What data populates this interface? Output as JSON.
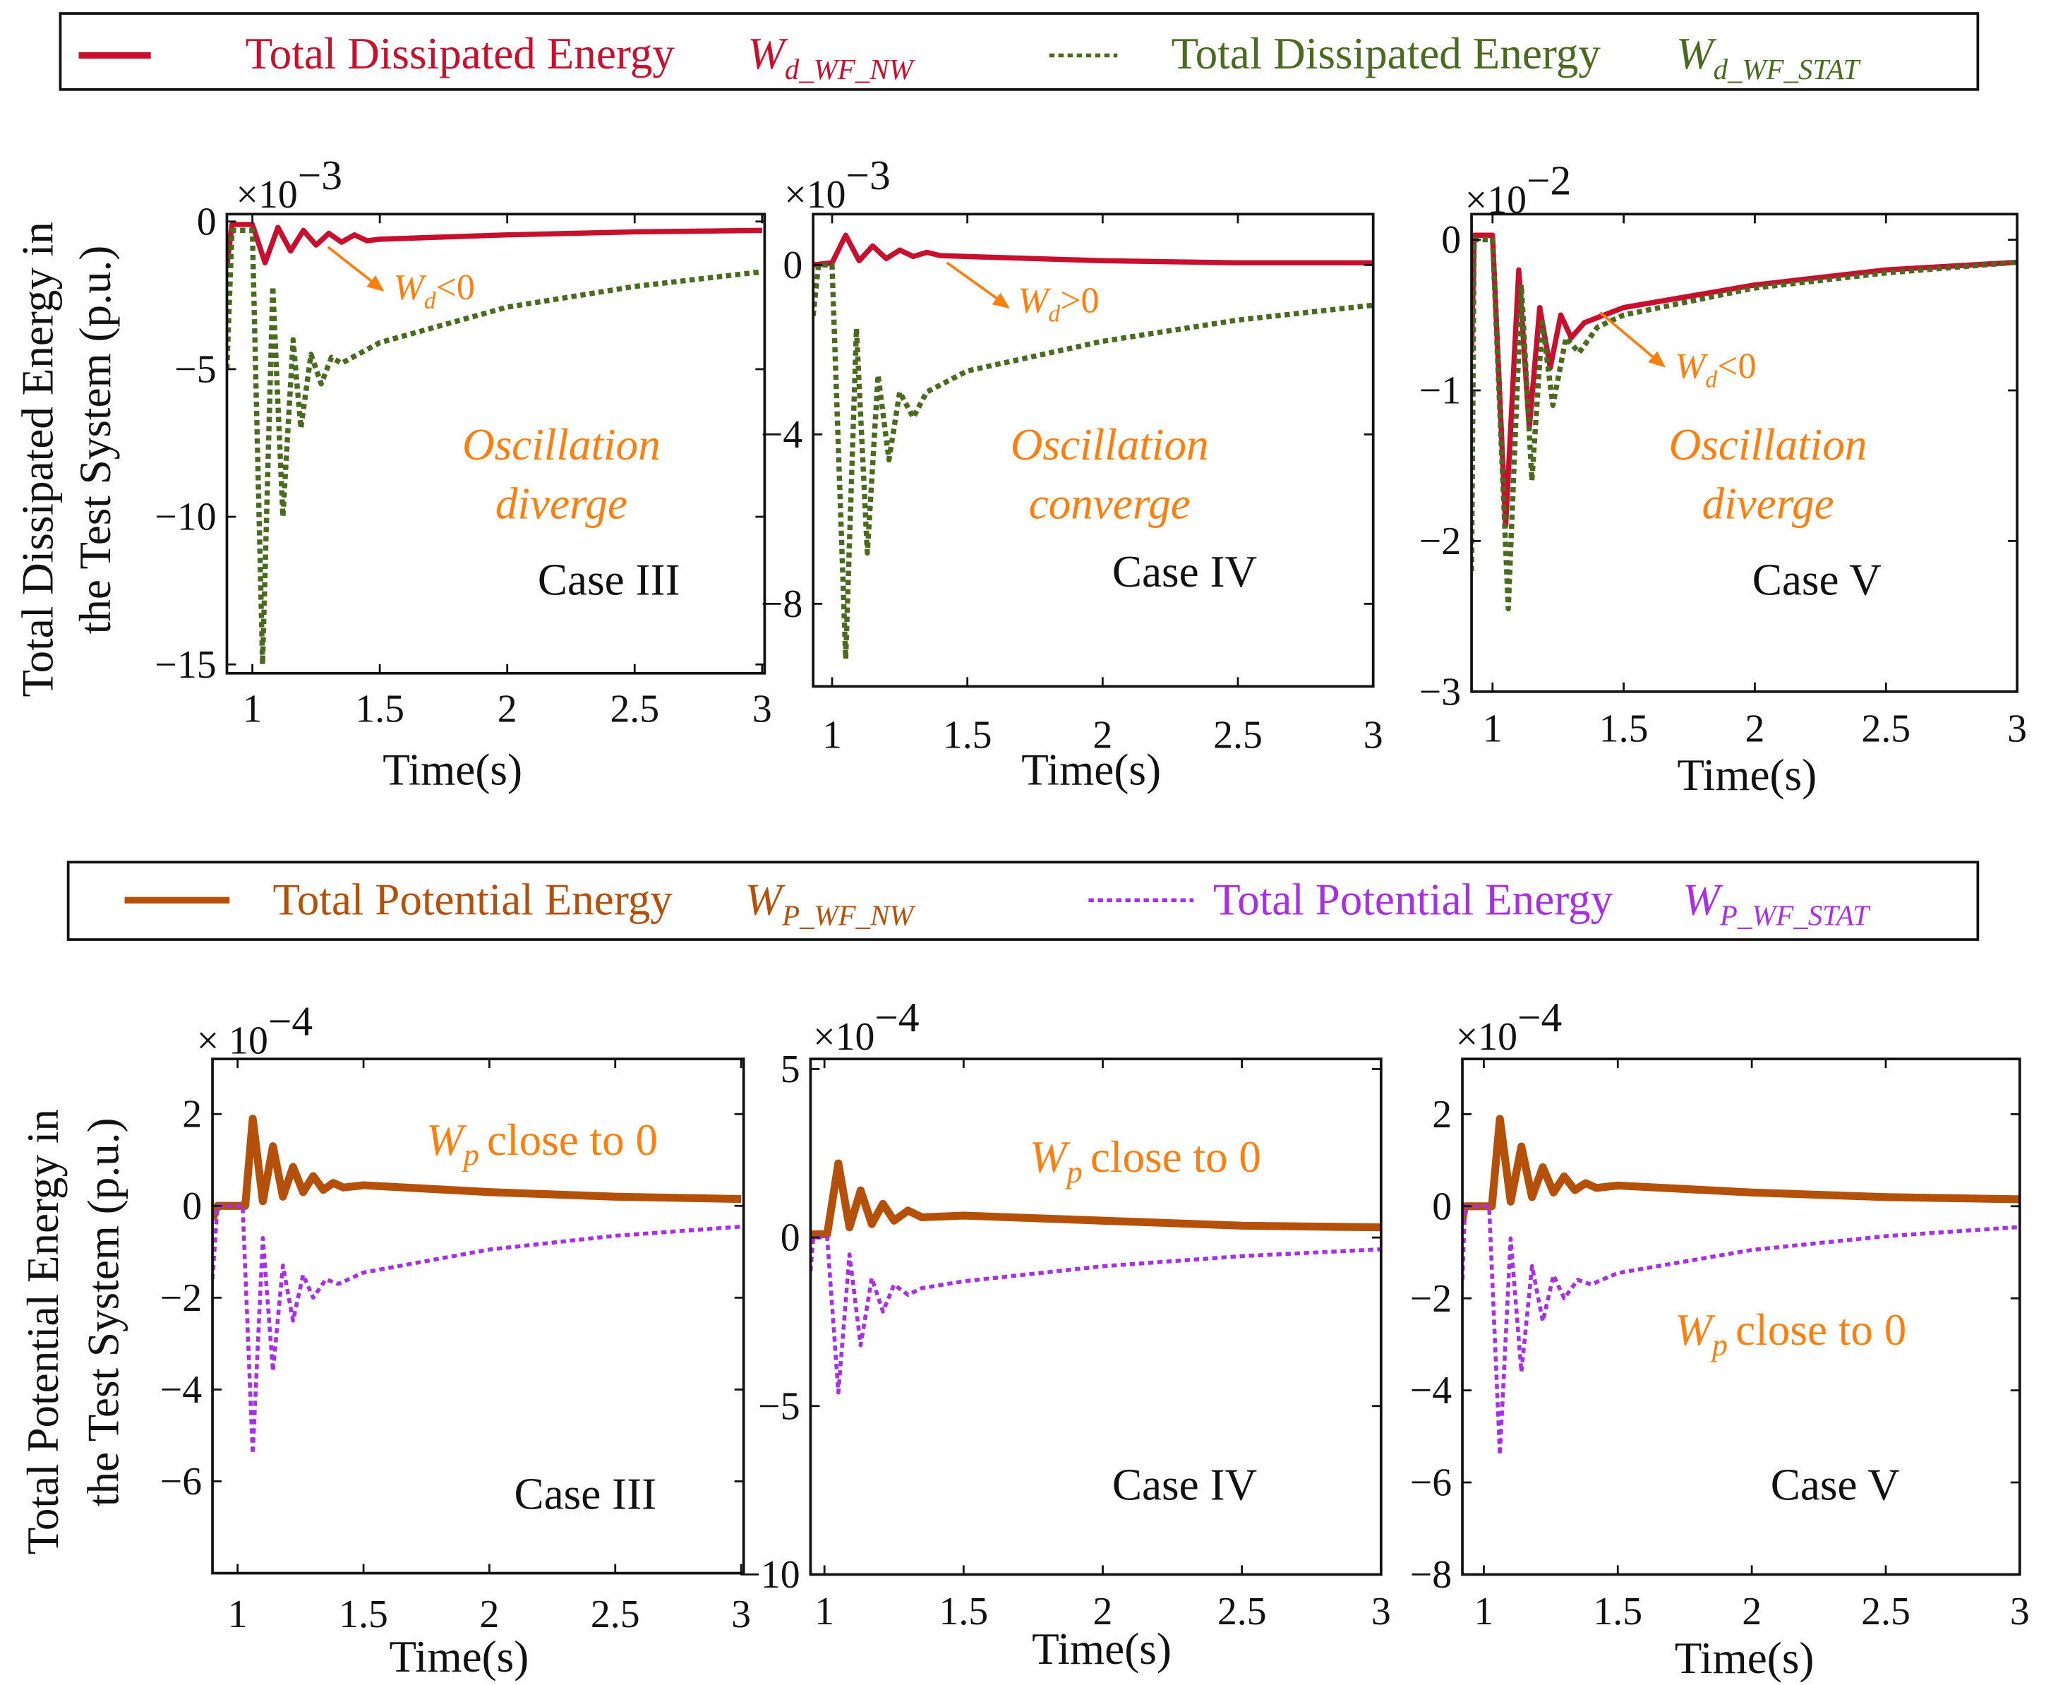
{
  "legend_top": {
    "items": [
      {
        "label": "Total Dissipated Energy",
        "symbol": "W",
        "sub": "d_WF_NW",
        "color": "#c8102e",
        "style": "solid"
      },
      {
        "label": "Total Dissipated Energy",
        "symbol": "W",
        "sub": "d_WF_STAT",
        "color": "#4a6a1f",
        "style": "dotted"
      }
    ]
  },
  "legend_bottom": {
    "items": [
      {
        "label": "Total Potential Energy",
        "symbol": "W",
        "sub": "P_WF_NW",
        "color": "#b5500a",
        "style": "solid"
      },
      {
        "label": "Total Potential Energy",
        "symbol": "W",
        "sub": "P_WF_STAT",
        "color": "#a82ee8",
        "style": "dotted"
      }
    ]
  },
  "ylabel_top": [
    "Total Dissipated Energy in",
    "the Test System (p.u.)"
  ],
  "ylabel_bottom": [
    "Total Potential Energy in",
    "the Test System (p.u.)"
  ],
  "chart_data": [
    {
      "type": "line",
      "case": "Case III",
      "xlabel": "Time(s)",
      "exponent": "−3",
      "multiplier": "×10",
      "xlim": [
        0.9,
        3.01
      ],
      "ylim": [
        -15.3,
        0.25
      ],
      "xticks": [
        1,
        1.5,
        2,
        2.5,
        3
      ],
      "yticks": [
        0,
        -5,
        -10,
        -15
      ],
      "annotations": {
        "lines": [
          "Oscillation",
          "diverge"
        ],
        "w_sym": "W",
        "w_sub": "d",
        "w_rel": "<0"
      },
      "series": [
        {
          "name": "W_d_WF_NW",
          "color": "#c8102e",
          "style": "solid",
          "points": [
            [
              0.9,
              -1.5
            ],
            [
              0.92,
              -0.1
            ],
            [
              1.0,
              -0.1
            ],
            [
              1.05,
              -1.4
            ],
            [
              1.1,
              -0.2
            ],
            [
              1.15,
              -1.0
            ],
            [
              1.2,
              -0.3
            ],
            [
              1.25,
              -0.8
            ],
            [
              1.3,
              -0.4
            ],
            [
              1.35,
              -0.7
            ],
            [
              1.4,
              -0.45
            ],
            [
              1.45,
              -0.65
            ],
            [
              1.5,
              -0.6
            ],
            [
              2,
              -0.45
            ],
            [
              2.5,
              -0.35
            ],
            [
              3,
              -0.3
            ]
          ]
        },
        {
          "name": "W_d_WF_STAT",
          "color": "#4a6a1f",
          "style": "dotted",
          "points": [
            [
              0.9,
              -5
            ],
            [
              0.92,
              -0.3
            ],
            [
              1.0,
              -0.3
            ],
            [
              1.04,
              -15
            ],
            [
              1.08,
              -2.2
            ],
            [
              1.12,
              -10
            ],
            [
              1.16,
              -4
            ],
            [
              1.19,
              -7
            ],
            [
              1.23,
              -4.5
            ],
            [
              1.27,
              -5.5
            ],
            [
              1.31,
              -4.6
            ],
            [
              1.35,
              -4.8
            ],
            [
              1.5,
              -4.1
            ],
            [
              2,
              -2.9
            ],
            [
              2.5,
              -2.2
            ],
            [
              3,
              -1.7
            ]
          ]
        }
      ]
    },
    {
      "type": "line",
      "case": "Case IV",
      "xlabel": "Time(s)",
      "exponent": "−3",
      "multiplier": "×10",
      "xlim": [
        0.93,
        3
      ],
      "ylim": [
        -9.95,
        1.2
      ],
      "xticks": [
        1,
        1.5,
        2,
        2.5,
        3
      ],
      "yticks": [
        0,
        -4,
        -8
      ],
      "annotations": {
        "lines": [
          "Oscillation",
          "converge"
        ],
        "w_sym": "W",
        "w_sub": "d",
        "w_rel": ">0"
      },
      "series": [
        {
          "name": "W_d_WF_NW",
          "color": "#c8102e",
          "style": "solid",
          "points": [
            [
              0.93,
              0
            ],
            [
              1.0,
              0.05
            ],
            [
              1.05,
              0.7
            ],
            [
              1.1,
              0.1
            ],
            [
              1.15,
              0.45
            ],
            [
              1.2,
              0.15
            ],
            [
              1.25,
              0.35
            ],
            [
              1.3,
              0.2
            ],
            [
              1.35,
              0.3
            ],
            [
              1.4,
              0.22
            ],
            [
              1.5,
              0.2
            ],
            [
              2,
              0.1
            ],
            [
              2.5,
              0.05
            ],
            [
              3,
              0.05
            ]
          ]
        },
        {
          "name": "W_d_WF_STAT",
          "color": "#4a6a1f",
          "style": "dotted",
          "points": [
            [
              0.93,
              -1.2
            ],
            [
              0.95,
              0
            ],
            [
              1.0,
              0
            ],
            [
              1.05,
              -9.3
            ],
            [
              1.09,
              -1.5
            ],
            [
              1.13,
              -6.8
            ],
            [
              1.17,
              -2.6
            ],
            [
              1.21,
              -4.6
            ],
            [
              1.25,
              -3
            ],
            [
              1.3,
              -3.6
            ],
            [
              1.35,
              -3
            ],
            [
              1.5,
              -2.5
            ],
            [
              2,
              -1.8
            ],
            [
              2.5,
              -1.3
            ],
            [
              3,
              -0.95
            ]
          ]
        }
      ]
    },
    {
      "type": "line",
      "case": "Case V",
      "xlabel": "Time(s)",
      "exponent": "−2",
      "multiplier": "×10",
      "xlim": [
        0.92,
        3
      ],
      "ylim": [
        -3,
        0.17
      ],
      "xticks": [
        1,
        1.5,
        2,
        2.5,
        3
      ],
      "yticks": [
        0,
        -1,
        -2,
        -3
      ],
      "annotations": {
        "lines": [
          "Oscillation",
          "diverge"
        ],
        "w_sym": "W",
        "w_sub": "d",
        "w_rel": "<0"
      },
      "series": [
        {
          "name": "W_d_WF_NW",
          "color": "#c8102e",
          "style": "solid",
          "points": [
            [
              0.92,
              -0.75
            ],
            [
              0.93,
              0.03
            ],
            [
              1.0,
              0.03
            ],
            [
              1.05,
              -1.9
            ],
            [
              1.1,
              -0.2
            ],
            [
              1.14,
              -1.25
            ],
            [
              1.18,
              -0.45
            ],
            [
              1.22,
              -0.85
            ],
            [
              1.26,
              -0.5
            ],
            [
              1.3,
              -0.65
            ],
            [
              1.35,
              -0.55
            ],
            [
              1.5,
              -0.45
            ],
            [
              2,
              -0.3
            ],
            [
              2.5,
              -0.2
            ],
            [
              3,
              -0.15
            ]
          ]
        },
        {
          "name": "W_d_WF_STAT",
          "color": "#4a6a1f",
          "style": "dotted",
          "points": [
            [
              0.92,
              -2.2
            ],
            [
              0.93,
              0
            ],
            [
              1.0,
              0
            ],
            [
              1.06,
              -2.45
            ],
            [
              1.11,
              -0.3
            ],
            [
              1.15,
              -1.6
            ],
            [
              1.19,
              -0.55
            ],
            [
              1.23,
              -1.1
            ],
            [
              1.28,
              -0.65
            ],
            [
              1.33,
              -0.75
            ],
            [
              1.4,
              -0.58
            ],
            [
              1.5,
              -0.5
            ],
            [
              2,
              -0.32
            ],
            [
              2.5,
              -0.22
            ],
            [
              3,
              -0.15
            ]
          ]
        }
      ]
    },
    {
      "type": "line",
      "case": "Case III",
      "xlabel": "Time(s)",
      "exponent": "−4",
      "multiplier": "× 10",
      "xlim": [
        0.9,
        3.01
      ],
      "ylim": [
        -8,
        3.2
      ],
      "xticks": [
        1,
        1.5,
        2,
        2.5,
        3
      ],
      "yticks": [
        2,
        0,
        -2,
        -4,
        -6
      ],
      "annotations": {
        "w_sym": "W",
        "w_sub": "p",
        "w_rel": "close to 0"
      },
      "series": [
        {
          "name": "W_P_WF_NW",
          "color": "#b5500a",
          "style": "solid",
          "points": [
            [
              0.9,
              -0.3
            ],
            [
              0.92,
              0
            ],
            [
              1.03,
              0
            ],
            [
              1.06,
              1.9
            ],
            [
              1.1,
              0.1
            ],
            [
              1.14,
              1.3
            ],
            [
              1.18,
              0.2
            ],
            [
              1.22,
              0.85
            ],
            [
              1.26,
              0.3
            ],
            [
              1.3,
              0.65
            ],
            [
              1.34,
              0.35
            ],
            [
              1.38,
              0.5
            ],
            [
              1.42,
              0.4
            ],
            [
              1.5,
              0.45
            ],
            [
              2,
              0.3
            ],
            [
              2.5,
              0.2
            ],
            [
              3,
              0.15
            ]
          ]
        },
        {
          "name": "W_P_WF_STAT",
          "color": "#a82ee8",
          "style": "dotted",
          "points": [
            [
              0.9,
              -1.6
            ],
            [
              0.92,
              0
            ],
            [
              1.02,
              0
            ],
            [
              1.06,
              -5.4
            ],
            [
              1.1,
              -0.7
            ],
            [
              1.14,
              -3.6
            ],
            [
              1.18,
              -1.3
            ],
            [
              1.22,
              -2.5
            ],
            [
              1.26,
              -1.5
            ],
            [
              1.3,
              -2
            ],
            [
              1.35,
              -1.6
            ],
            [
              1.4,
              -1.7
            ],
            [
              1.5,
              -1.45
            ],
            [
              2,
              -0.95
            ],
            [
              2.5,
              -0.65
            ],
            [
              3,
              -0.45
            ]
          ]
        }
      ]
    },
    {
      "type": "line",
      "case": "Case IV",
      "xlabel": "Time(s)",
      "exponent": "−4",
      "multiplier": "×10",
      "xlim": [
        0.95,
        3
      ],
      "ylim": [
        -10,
        5.3
      ],
      "xticks": [
        1,
        1.5,
        2,
        2.5,
        3
      ],
      "yticks": [
        5,
        0,
        -5,
        -10
      ],
      "annotations": {
        "w_sym": "W",
        "w_sub": "p",
        "w_rel": "close to 0"
      },
      "series": [
        {
          "name": "W_P_WF_NW",
          "color": "#b5500a",
          "style": "solid",
          "points": [
            [
              0.95,
              -0.1
            ],
            [
              0.96,
              0.1
            ],
            [
              1.01,
              0.1
            ],
            [
              1.05,
              2.2
            ],
            [
              1.09,
              0.3
            ],
            [
              1.13,
              1.4
            ],
            [
              1.17,
              0.4
            ],
            [
              1.21,
              1.0
            ],
            [
              1.25,
              0.5
            ],
            [
              1.3,
              0.8
            ],
            [
              1.35,
              0.6
            ],
            [
              1.5,
              0.65
            ],
            [
              2,
              0.5
            ],
            [
              2.5,
              0.35
            ],
            [
              3,
              0.3
            ]
          ]
        },
        {
          "name": "W_P_WF_STAT",
          "color": "#a82ee8",
          "style": "dotted",
          "points": [
            [
              0.95,
              -1.0
            ],
            [
              0.96,
              0
            ],
            [
              1.01,
              0
            ],
            [
              1.05,
              -4.6
            ],
            [
              1.09,
              -0.5
            ],
            [
              1.13,
              -3.2
            ],
            [
              1.17,
              -1.2
            ],
            [
              1.21,
              -2.2
            ],
            [
              1.25,
              -1.4
            ],
            [
              1.3,
              -1.7
            ],
            [
              1.35,
              -1.5
            ],
            [
              1.5,
              -1.3
            ],
            [
              2,
              -0.85
            ],
            [
              2.5,
              -0.55
            ],
            [
              3,
              -0.35
            ]
          ]
        }
      ]
    },
    {
      "type": "line",
      "case": "Case V",
      "xlabel": "Time(s)",
      "exponent": "−4",
      "multiplier": "×10",
      "xlim": [
        0.92,
        3
      ],
      "ylim": [
        -8,
        3.2
      ],
      "xticks": [
        1,
        1.5,
        2,
        2.5,
        3
      ],
      "yticks": [
        2,
        0,
        -2,
        -4,
        -6,
        -8
      ],
      "annotations": {
        "w_sym": "W",
        "w_sub": "p",
        "w_rel": "close to 0"
      },
      "series": [
        {
          "name": "W_P_WF_NW",
          "color": "#b5500a",
          "style": "solid",
          "points": [
            [
              0.92,
              -0.3
            ],
            [
              0.93,
              0
            ],
            [
              1.03,
              0
            ],
            [
              1.06,
              1.9
            ],
            [
              1.1,
              0.1
            ],
            [
              1.14,
              1.3
            ],
            [
              1.18,
              0.2
            ],
            [
              1.22,
              0.85
            ],
            [
              1.26,
              0.3
            ],
            [
              1.3,
              0.65
            ],
            [
              1.34,
              0.35
            ],
            [
              1.38,
              0.5
            ],
            [
              1.42,
              0.4
            ],
            [
              1.5,
              0.45
            ],
            [
              2,
              0.3
            ],
            [
              2.5,
              0.2
            ],
            [
              3,
              0.15
            ]
          ]
        },
        {
          "name": "W_P_WF_STAT",
          "color": "#a82ee8",
          "style": "dotted",
          "points": [
            [
              0.92,
              -1.6
            ],
            [
              0.93,
              0
            ],
            [
              1.02,
              0
            ],
            [
              1.06,
              -5.4
            ],
            [
              1.1,
              -0.7
            ],
            [
              1.14,
              -3.6
            ],
            [
              1.18,
              -1.3
            ],
            [
              1.22,
              -2.5
            ],
            [
              1.26,
              -1.5
            ],
            [
              1.3,
              -2
            ],
            [
              1.35,
              -1.6
            ],
            [
              1.4,
              -1.7
            ],
            [
              1.5,
              -1.45
            ],
            [
              2,
              -0.95
            ],
            [
              2.5,
              -0.65
            ],
            [
              3,
              -0.45
            ]
          ]
        }
      ]
    }
  ]
}
